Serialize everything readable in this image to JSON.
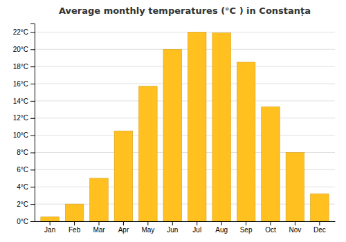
{
  "chart_data": {
    "type": "bar",
    "title": "Average monthly temperatures (°C ) in Constanța",
    "categories": [
      "Jan",
      "Feb",
      "Mar",
      "Apr",
      "May",
      "Jun",
      "Jul",
      "Aug",
      "Sep",
      "Oct",
      "Nov",
      "Dec"
    ],
    "values": [
      0.5,
      2.0,
      5.0,
      10.5,
      15.7,
      20.0,
      22.0,
      21.9,
      18.5,
      13.3,
      8.0,
      3.2
    ],
    "color": "#FFC020",
    "ylim": [
      0,
      23
    ],
    "yticks": [
      {
        "value": 0,
        "label": "0°C"
      },
      {
        "value": 2,
        "label": "2°C"
      },
      {
        "value": 4,
        "label": "4°C"
      },
      {
        "value": 6,
        "label": "6°C"
      },
      {
        "value": 8,
        "label": "8°C"
      },
      {
        "value": 10,
        "label": "10°C"
      },
      {
        "value": 12,
        "label": "12°C"
      },
      {
        "value": 14,
        "label": "14°C"
      },
      {
        "value": 16,
        "label": "16°C"
      },
      {
        "value": 18,
        "label": "18°C"
      },
      {
        "value": 20,
        "label": "20°C"
      },
      {
        "value": 22,
        "label": "22°C"
      }
    ],
    "grid": true
  }
}
